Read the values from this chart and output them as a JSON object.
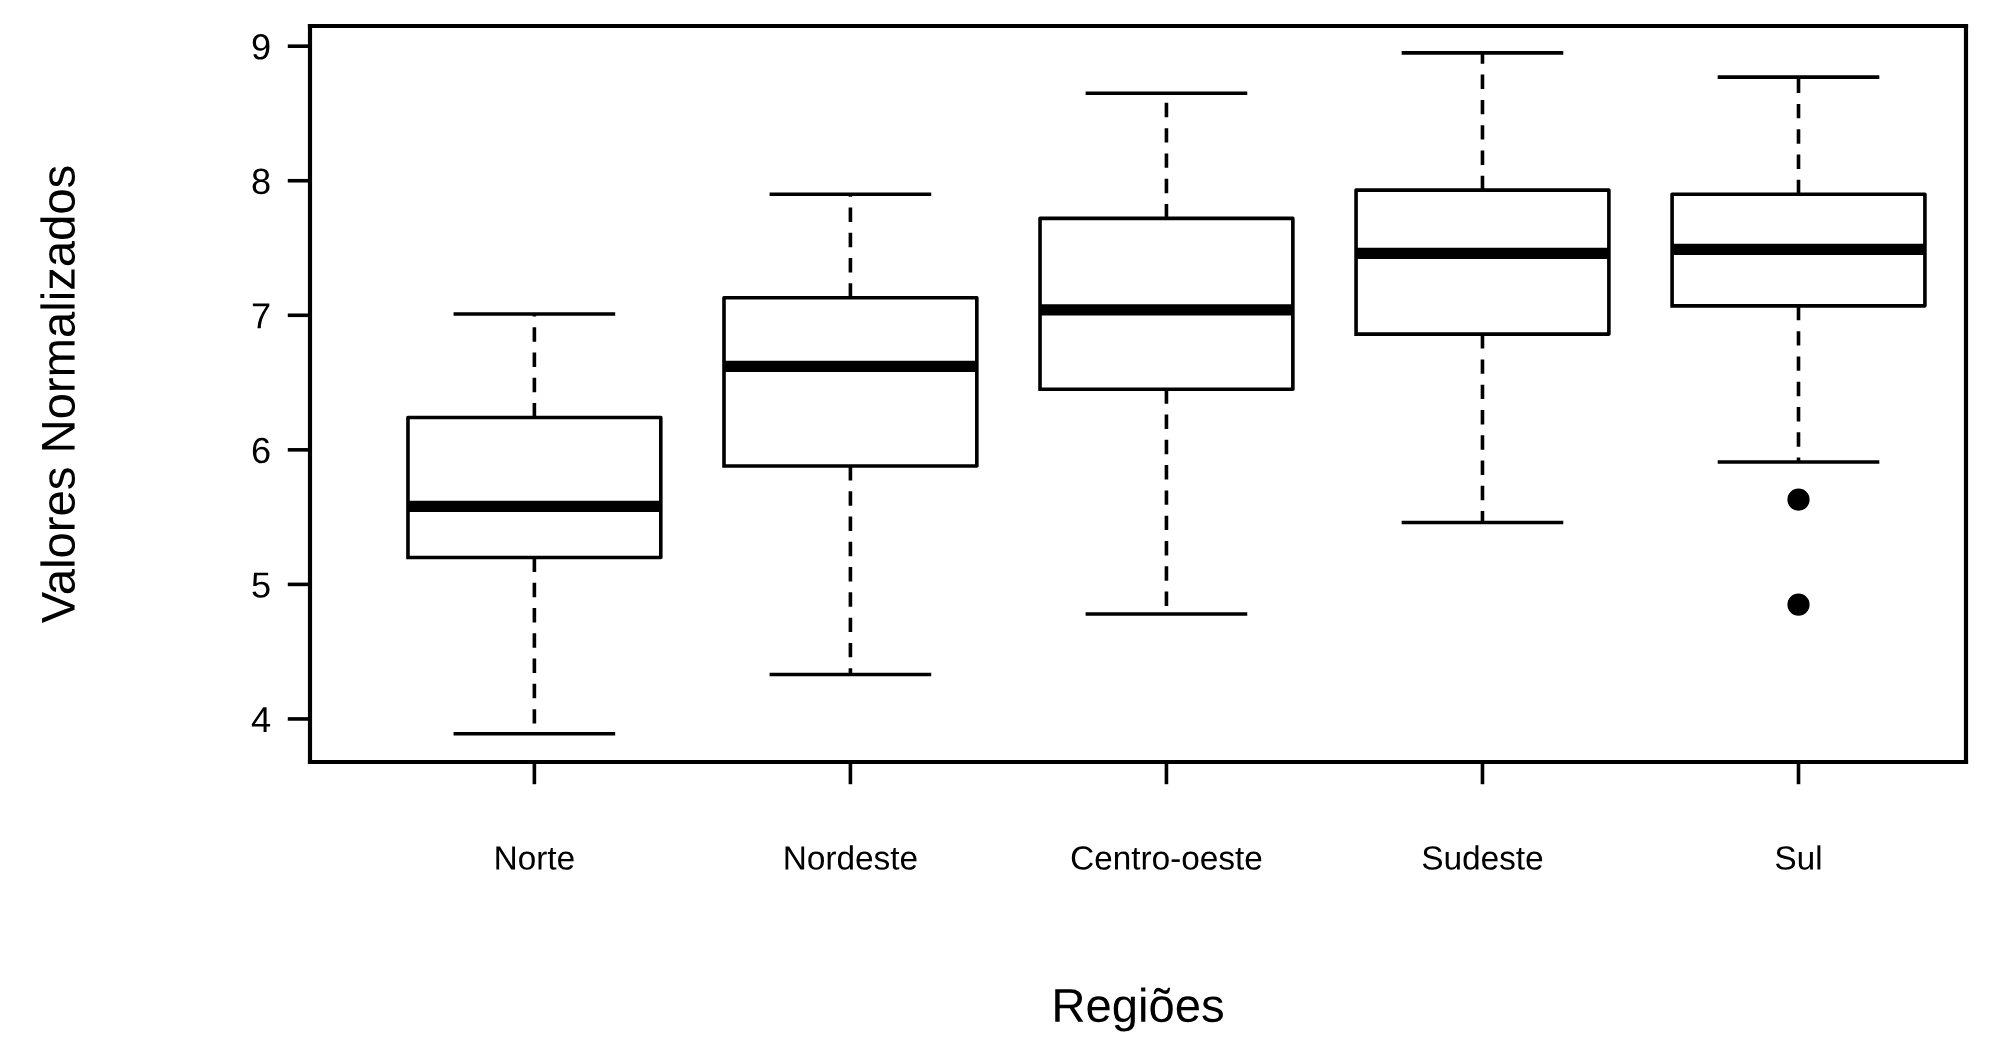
{
  "chart_data": {
    "type": "box",
    "xlabel": "Regiões",
    "ylabel": "Valores Normalizados",
    "categories": [
      "Norte",
      "Nordeste",
      "Centro-oeste",
      "Sudeste",
      "Sul"
    ],
    "boxes": [
      {
        "low": 3.89,
        "q1": 5.2,
        "median": 5.58,
        "q3": 6.24,
        "high": 7.01
      },
      {
        "low": 4.33,
        "q1": 5.88,
        "median": 6.62,
        "q3": 7.13,
        "high": 7.9
      },
      {
        "low": 4.78,
        "q1": 6.45,
        "median": 7.04,
        "q3": 7.72,
        "high": 8.65
      },
      {
        "low": 5.46,
        "q1": 6.86,
        "median": 7.46,
        "q3": 7.93,
        "high": 8.95
      },
      {
        "low": 5.91,
        "q1": 7.07,
        "median": 7.49,
        "q3": 7.9,
        "high": 8.77,
        "outliers": [
          5.63,
          4.85
        ]
      }
    ],
    "ylim": [
      3.68,
      9.15
    ],
    "yticks": [
      4,
      5,
      6,
      7,
      8,
      9
    ],
    "grid": false
  }
}
